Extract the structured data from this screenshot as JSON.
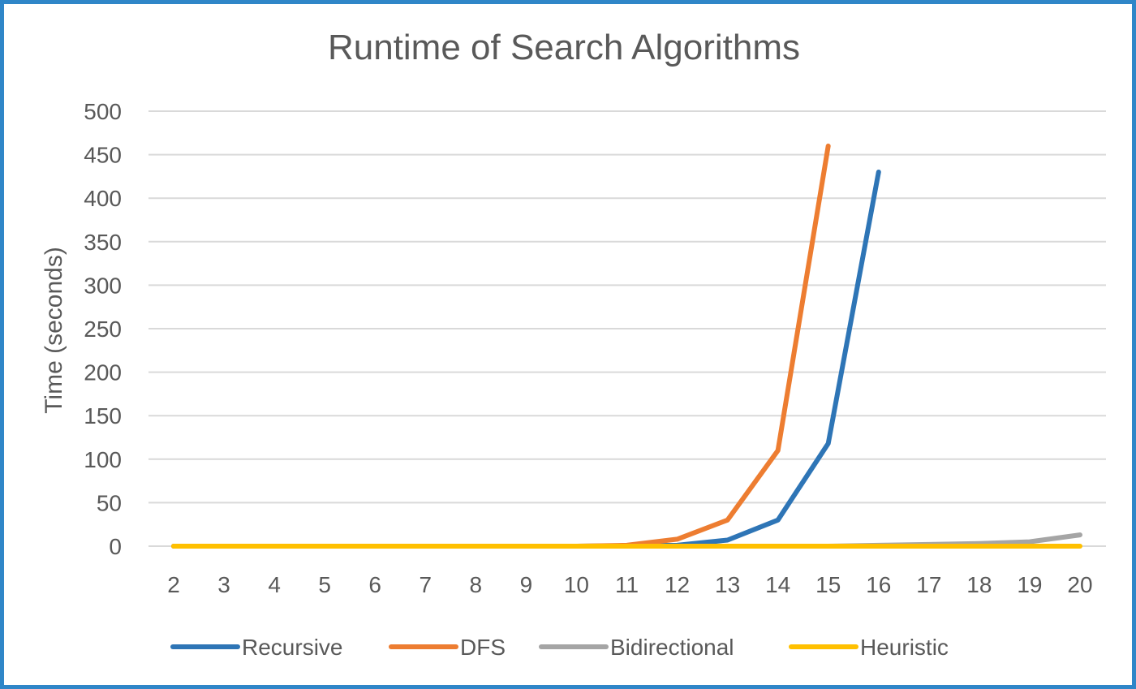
{
  "chart_data": {
    "type": "line",
    "title": "Runtime of Search Algorithms",
    "xlabel": "",
    "ylabel": "Time (seconds)",
    "ylim": [
      0,
      500
    ],
    "yticks": [
      "0",
      "50",
      "100",
      "150",
      "200",
      "250",
      "300",
      "350",
      "400",
      "450",
      "500"
    ],
    "categories": [
      "2",
      "3",
      "4",
      "5",
      "6",
      "7",
      "8",
      "9",
      "10",
      "11",
      "12",
      "13",
      "14",
      "15",
      "16",
      "17",
      "18",
      "19",
      "20"
    ],
    "grid": true,
    "legend_position": "bottom",
    "series": [
      {
        "name": "Recursive",
        "color": "#2e75b6",
        "values": [
          0,
          0,
          0,
          0,
          0,
          0,
          0,
          0,
          0,
          0.5,
          1,
          7,
          30,
          118,
          430,
          null,
          null,
          null,
          null
        ]
      },
      {
        "name": "DFS",
        "color": "#ed7d31",
        "values": [
          0,
          0,
          0,
          0,
          0,
          0,
          0,
          0,
          0,
          1,
          8,
          30,
          110,
          460,
          null,
          null,
          null,
          null,
          null
        ]
      },
      {
        "name": "Bidirectional",
        "color": "#a5a5a5",
        "values": [
          0,
          0,
          0,
          0,
          0,
          0,
          0,
          0,
          0,
          0,
          0,
          0,
          0,
          0,
          1,
          2,
          3,
          5,
          13
        ]
      },
      {
        "name": "Heuristic",
        "color": "#ffc000",
        "values": [
          0,
          0,
          0,
          0,
          0,
          0,
          0,
          0,
          0,
          0,
          0,
          0,
          0,
          0,
          0,
          0,
          0,
          0,
          0
        ]
      }
    ]
  }
}
